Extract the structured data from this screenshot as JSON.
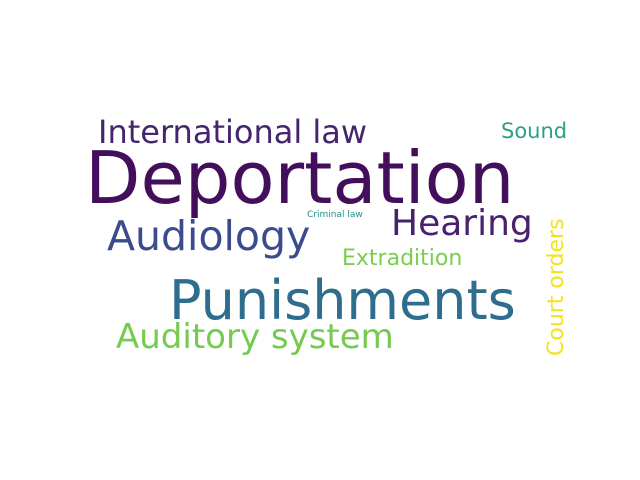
{
  "words": [
    {
      "text": "International law",
      "color": "#46256f"
    },
    {
      "text": "Sound",
      "color": "#2aa184"
    },
    {
      "text": "Deportation",
      "color": "#430f5b"
    },
    {
      "text": "Criminal law",
      "color": "#23918b"
    },
    {
      "text": "Hearing",
      "color": "#4a216f"
    },
    {
      "text": "Court orders",
      "color": "#f2e31e"
    },
    {
      "text": "Audiology",
      "color": "#3b4b8b"
    },
    {
      "text": "Extradition",
      "color": "#79cf4d"
    },
    {
      "text": "Punishments",
      "color": "#2f6d8f"
    },
    {
      "text": "Auditory system",
      "color": "#74cb4f"
    }
  ]
}
